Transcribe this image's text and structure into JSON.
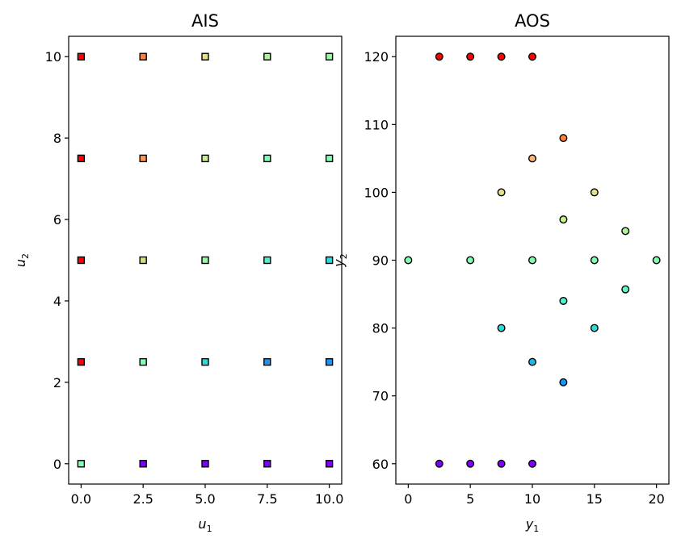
{
  "chart_data": [
    {
      "type": "scatter",
      "title": "AIS",
      "xlabel": "u",
      "xlabel_sub": "1",
      "ylabel": "u",
      "ylabel_sub": "2",
      "xlim": [
        -0.5,
        10.5
      ],
      "ylim": [
        -0.5,
        10.5
      ],
      "xticks": [
        0,
        2.5,
        5,
        7.5,
        10
      ],
      "xtick_labels": [
        "0.0",
        "2.5",
        "5.0",
        "7.5",
        "10.0"
      ],
      "yticks": [
        0,
        2,
        4,
        6,
        8,
        10
      ],
      "ytick_labels": [
        "0",
        "2",
        "4",
        "6",
        "8",
        "10"
      ],
      "marker": "square",
      "grid": false,
      "points": [
        {
          "x": 0,
          "y": 0,
          "color": "#80ffb4"
        },
        {
          "x": 2.5,
          "y": 0,
          "color": "#8000ff"
        },
        {
          "x": 5,
          "y": 0,
          "color": "#8000ff"
        },
        {
          "x": 7.5,
          "y": 0,
          "color": "#8000ff"
        },
        {
          "x": 10,
          "y": 0,
          "color": "#8000ff"
        },
        {
          "x": 0,
          "y": 2.5,
          "color": "#ff0000"
        },
        {
          "x": 2.5,
          "y": 2.5,
          "color": "#80ffb4"
        },
        {
          "x": 5,
          "y": 2.5,
          "color": "#2adddd"
        },
        {
          "x": 7.5,
          "y": 2.5,
          "color": "#1996f3"
        },
        {
          "x": 10,
          "y": 2.5,
          "color": "#1996f3"
        },
        {
          "x": 0,
          "y": 5,
          "color": "#ff0000"
        },
        {
          "x": 2.5,
          "y": 5,
          "color": "#d4dd80"
        },
        {
          "x": 5,
          "y": 5,
          "color": "#9cfaa4"
        },
        {
          "x": 7.5,
          "y": 5,
          "color": "#4cf2ce"
        },
        {
          "x": 10,
          "y": 5,
          "color": "#2adddd"
        },
        {
          "x": 0,
          "y": 7.5,
          "color": "#ff0000"
        },
        {
          "x": 2.5,
          "y": 7.5,
          "color": "#ff964e"
        },
        {
          "x": 5,
          "y": 7.5,
          "color": "#c4f08e"
        },
        {
          "x": 7.5,
          "y": 7.5,
          "color": "#80ffb4"
        },
        {
          "x": 10,
          "y": 7.5,
          "color": "#80ffb4"
        },
        {
          "x": 0,
          "y": 10,
          "color": "#ff0000"
        },
        {
          "x": 2.5,
          "y": 10,
          "color": "#ff8040"
        },
        {
          "x": 5,
          "y": 10,
          "color": "#e4e08a"
        },
        {
          "x": 7.5,
          "y": 10,
          "color": "#b0f49a"
        },
        {
          "x": 10,
          "y": 10,
          "color": "#9cfaa4"
        }
      ]
    },
    {
      "type": "scatter",
      "title": "AOS",
      "xlabel": "y",
      "xlabel_sub": "1",
      "ylabel": "y",
      "ylabel_sub": "2",
      "xlim": [
        -1,
        21
      ],
      "ylim": [
        57,
        123
      ],
      "xticks": [
        0,
        5,
        10,
        15,
        20
      ],
      "xtick_labels": [
        "0",
        "5",
        "10",
        "15",
        "20"
      ],
      "yticks": [
        60,
        70,
        80,
        90,
        100,
        110,
        120
      ],
      "ytick_labels": [
        "60",
        "70",
        "80",
        "90",
        "100",
        "110",
        "120"
      ],
      "marker": "circle",
      "grid": false,
      "points": [
        {
          "x": 2.5,
          "y": 120,
          "color": "#ff0000"
        },
        {
          "x": 5,
          "y": 120,
          "color": "#ff0000"
        },
        {
          "x": 7.5,
          "y": 120,
          "color": "#ff0000"
        },
        {
          "x": 10,
          "y": 120,
          "color": "#ff0000"
        },
        {
          "x": 12.5,
          "y": 108,
          "color": "#ff8040"
        },
        {
          "x": 10,
          "y": 105,
          "color": "#ffb470"
        },
        {
          "x": 7.5,
          "y": 100,
          "color": "#e4e08a"
        },
        {
          "x": 15,
          "y": 100,
          "color": "#e4e08a"
        },
        {
          "x": 12.5,
          "y": 96,
          "color": "#c4f08e"
        },
        {
          "x": 17.5,
          "y": 94.3,
          "color": "#b0f49a"
        },
        {
          "x": 0,
          "y": 90,
          "color": "#80ffb4"
        },
        {
          "x": 5,
          "y": 90,
          "color": "#80ffb4"
        },
        {
          "x": 10,
          "y": 90,
          "color": "#80ffb4"
        },
        {
          "x": 15,
          "y": 90,
          "color": "#80ffb4"
        },
        {
          "x": 20,
          "y": 90,
          "color": "#80ffb4"
        },
        {
          "x": 17.5,
          "y": 85.7,
          "color": "#60f8c0"
        },
        {
          "x": 12.5,
          "y": 84,
          "color": "#4cf2ce"
        },
        {
          "x": 7.5,
          "y": 80,
          "color": "#2adddd"
        },
        {
          "x": 15,
          "y": 80,
          "color": "#2adddd"
        },
        {
          "x": 10,
          "y": 75,
          "color": "#1cb8ea"
        },
        {
          "x": 12.5,
          "y": 72,
          "color": "#1996f3"
        },
        {
          "x": 2.5,
          "y": 60,
          "color": "#8000ff"
        },
        {
          "x": 5,
          "y": 60,
          "color": "#8000ff"
        },
        {
          "x": 7.5,
          "y": 60,
          "color": "#8000ff"
        },
        {
          "x": 10,
          "y": 60,
          "color": "#8000ff"
        }
      ]
    }
  ]
}
